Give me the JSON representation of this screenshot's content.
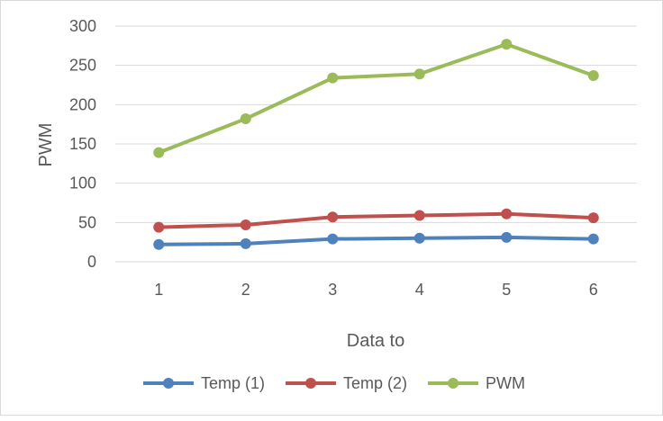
{
  "chart_data": {
    "type": "line",
    "title": "",
    "xlabel": "Data to",
    "ylabel": "PWM",
    "categories": [
      "1",
      "2",
      "3",
      "4",
      "5",
      "6"
    ],
    "ylim": [
      0,
      300
    ],
    "yticks": [
      0,
      50,
      100,
      150,
      200,
      250,
      300
    ],
    "grid": true,
    "legend_position": "bottom",
    "series": [
      {
        "name": "Temp (1)",
        "color": "#4f81bd",
        "values": [
          22,
          23,
          29,
          30,
          31,
          29
        ]
      },
      {
        "name": "Temp (2)",
        "color": "#c0504d",
        "values": [
          44,
          47,
          57,
          59,
          61,
          56
        ]
      },
      {
        "name": "PWM",
        "color": "#9bbb59",
        "values": [
          139,
          182,
          234,
          239,
          277,
          237
        ]
      }
    ]
  }
}
